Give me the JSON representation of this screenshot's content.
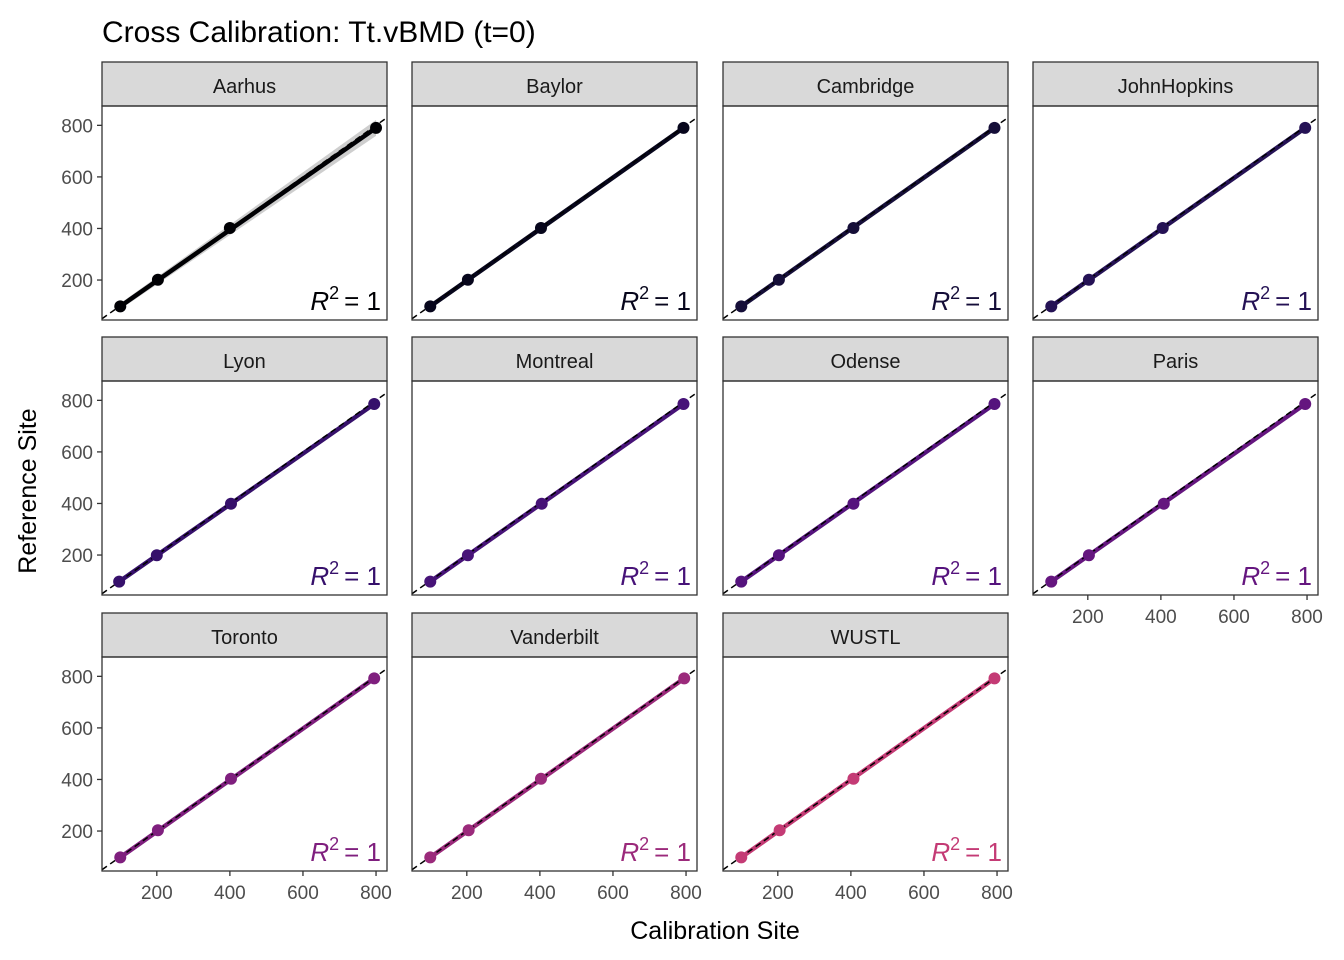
{
  "chart_data": {
    "type": "scatter",
    "title": "Cross Calibration: Tt.vBMD (t=0)",
    "xlabel": "Calibration Site",
    "ylabel": "Reference Site",
    "xlim": [
      50,
      830
    ],
    "ylim": [
      45,
      875
    ],
    "x_ticks": [
      200,
      400,
      600,
      800
    ],
    "y_ticks": [
      200,
      400,
      600,
      800
    ],
    "grid": false,
    "reference_line": "y = x (dashed)",
    "annotation_base": "R",
    "annotation_exp": "2",
    "annotation_value": "= 1",
    "panels": [
      {
        "name": "Aarhus",
        "color": "#000004",
        "ribbon": true,
        "points": [
          {
            "x": 100,
            "y": 98
          },
          {
            "x": 203,
            "y": 201
          },
          {
            "x": 400,
            "y": 402
          },
          {
            "x": 800,
            "y": 790
          }
        ]
      },
      {
        "name": "Baylor",
        "color": "#07061c",
        "points": [
          {
            "x": 100,
            "y": 98
          },
          {
            "x": 203,
            "y": 201
          },
          {
            "x": 403,
            "y": 402
          },
          {
            "x": 793,
            "y": 790
          }
        ]
      },
      {
        "name": "Cambridge",
        "color": "#150e38",
        "points": [
          {
            "x": 100,
            "y": 98
          },
          {
            "x": 203,
            "y": 201
          },
          {
            "x": 407,
            "y": 402
          },
          {
            "x": 793,
            "y": 790
          }
        ]
      },
      {
        "name": "JohnHopkins",
        "color": "#251255",
        "points": [
          {
            "x": 100,
            "y": 98
          },
          {
            "x": 203,
            "y": 201
          },
          {
            "x": 405,
            "y": 402
          },
          {
            "x": 795,
            "y": 790
          }
        ]
      },
      {
        "name": "Lyon",
        "color": "#36106b",
        "points": [
          {
            "x": 97,
            "y": 97
          },
          {
            "x": 200,
            "y": 199
          },
          {
            "x": 403,
            "y": 399
          },
          {
            "x": 795,
            "y": 786
          }
        ]
      },
      {
        "name": "Montreal",
        "color": "#471378",
        "points": [
          {
            "x": 100,
            "y": 97
          },
          {
            "x": 203,
            "y": 199
          },
          {
            "x": 405,
            "y": 399
          },
          {
            "x": 793,
            "y": 786
          }
        ]
      },
      {
        "name": "Odense",
        "color": "#55137d",
        "points": [
          {
            "x": 100,
            "y": 97
          },
          {
            "x": 203,
            "y": 199
          },
          {
            "x": 407,
            "y": 399
          },
          {
            "x": 793,
            "y": 786
          }
        ]
      },
      {
        "name": "Paris",
        "color": "#65167f",
        "points": [
          {
            "x": 100,
            "y": 97
          },
          {
            "x": 203,
            "y": 199
          },
          {
            "x": 408,
            "y": 399
          },
          {
            "x": 795,
            "y": 786
          }
        ]
      },
      {
        "name": "Toronto",
        "color": "#7f1f7e",
        "points": [
          {
            "x": 100,
            "y": 98
          },
          {
            "x": 203,
            "y": 203
          },
          {
            "x": 403,
            "y": 403
          },
          {
            "x": 795,
            "y": 792
          }
        ]
      },
      {
        "name": "Vanderbilt",
        "color": "#9b2a7b",
        "points": [
          {
            "x": 100,
            "y": 98
          },
          {
            "x": 205,
            "y": 203
          },
          {
            "x": 403,
            "y": 403
          },
          {
            "x": 795,
            "y": 792
          }
        ]
      },
      {
        "name": "WUSTL",
        "color": "#c43b75",
        "points": [
          {
            "x": 100,
            "y": 98
          },
          {
            "x": 205,
            "y": 203
          },
          {
            "x": 407,
            "y": 403
          },
          {
            "x": 793,
            "y": 792
          }
        ]
      }
    ]
  }
}
